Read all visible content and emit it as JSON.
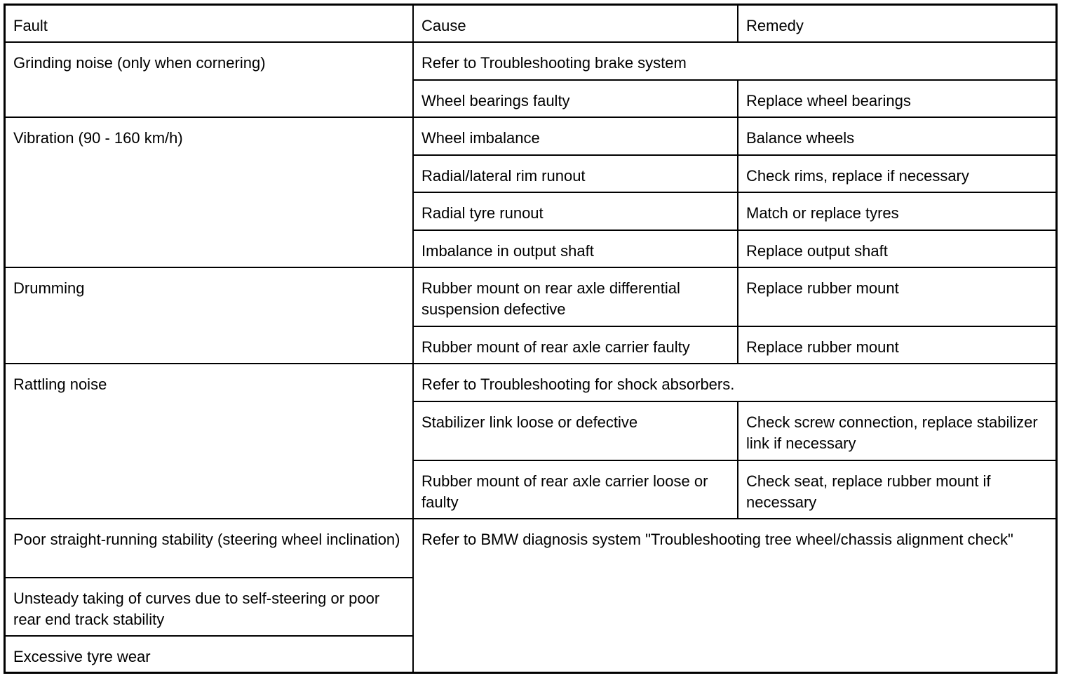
{
  "headers": {
    "fault": "Fault",
    "cause": "Cause",
    "remedy": "Remedy"
  },
  "groups": [
    {
      "fault": "Grinding noise (only when cornering)",
      "note": "Refer to Troubleshooting brake system",
      "rows": [
        {
          "cause": "Wheel bearings faulty",
          "remedy": "Replace wheel bearings"
        }
      ]
    },
    {
      "fault": "Vibration (90 - 160 km/h)",
      "rows": [
        {
          "cause": "Wheel imbalance",
          "remedy": "Balance wheels"
        },
        {
          "cause": "Radial/lateral rim runout",
          "remedy": "Check rims, replace if necessary"
        },
        {
          "cause": "Radial tyre runout",
          "remedy": "Match or replace tyres"
        },
        {
          "cause": "Imbalance in output shaft",
          "remedy": "Replace output shaft"
        }
      ]
    },
    {
      "fault": "Drumming",
      "rows": [
        {
          "cause": "Rubber mount on rear axle differential suspension defective",
          "remedy": "Replace rubber mount"
        },
        {
          "cause": "Rubber mount of rear axle carrier faulty",
          "remedy": "Replace rubber mount"
        }
      ]
    },
    {
      "fault": "Rattling noise",
      "note": "Refer to Troubleshooting for shock absorbers.",
      "rows": [
        {
          "cause": "Stabilizer link loose or defective",
          "remedy": "Check screw connection, replace stabilizer link if necessary"
        },
        {
          "cause": "Rubber mount of rear axle carrier loose or faulty",
          "remedy": "Check seat, replace rubber mount if necessary"
        }
      ]
    }
  ],
  "alignment": {
    "faults": [
      "Poor straight-running stability (steering wheel inclination)",
      "Unsteady taking of curves due to self-steering or poor rear end track stability",
      "Excessive tyre wear"
    ],
    "note": "Refer to BMW diagnosis system \"Troubleshooting tree wheel/chassis alignment check\""
  }
}
